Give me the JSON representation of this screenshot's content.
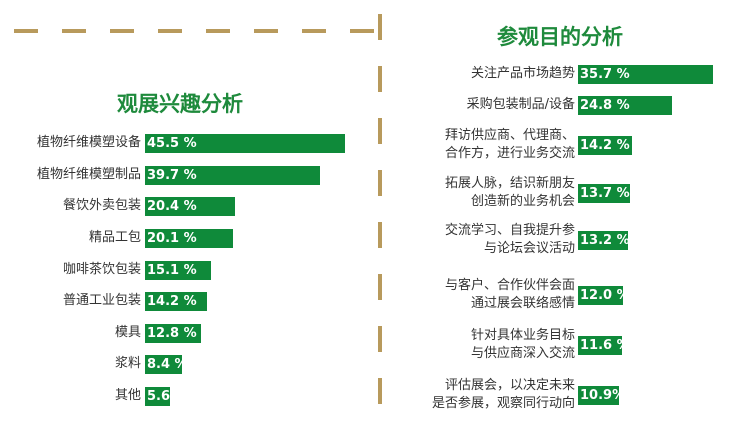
{
  "colors": {
    "bar": "#0f8a3a",
    "title": "#1e8a3c",
    "divider": "#b89a5c"
  },
  "chart_data": [
    {
      "type": "bar",
      "orientation": "horizontal",
      "title": "观展兴趣分析",
      "categories": [
        "植物纤维模塑设备",
        "植物纤维模塑制品",
        "餐饮外卖包装",
        "精品工包",
        "咖啡茶饮包装",
        "普通工业包装",
        "模具",
        "浆料",
        "其他"
      ],
      "values": [
        45.5,
        39.7,
        20.4,
        20.1,
        15.1,
        14.2,
        12.8,
        8.4,
        5.6
      ],
      "value_labels": [
        "45.5 %",
        "39.7 %",
        "20.4 %",
        "20.1 %",
        "15.1 %",
        "14.2 %",
        "12.8 %",
        "8.4 %",
        "5.6 %"
      ],
      "unit": "%"
    },
    {
      "type": "bar",
      "orientation": "horizontal",
      "title": "参观目的分析",
      "categories": [
        [
          "关注产品市场趋势"
        ],
        [
          "采购包装制品/设备"
        ],
        [
          "拜访供应商、代理商、",
          "合作方，进行业务交流"
        ],
        [
          "拓展人脉，结识新朋友",
          "创造新的业务机会"
        ],
        [
          "交流学习、自我提升参",
          "与论坛会议活动"
        ],
        [
          "与客户、合作伙伴会面",
          "通过展会联络感情"
        ],
        [
          "针对具体业务目标",
          "与供应商深入交流"
        ],
        [
          "评估展会，以决定未来",
          "是否参展，观察同行动向"
        ]
      ],
      "values": [
        35.7,
        24.8,
        14.2,
        13.7,
        13.2,
        12.0,
        11.6,
        10.9
      ],
      "value_labels": [
        "35.7 %",
        "24.8 %",
        "14.2 %",
        "13.7 %",
        "13.2 %",
        "12.0 %",
        "11.6 %",
        "10.9%"
      ],
      "unit": "%"
    }
  ]
}
